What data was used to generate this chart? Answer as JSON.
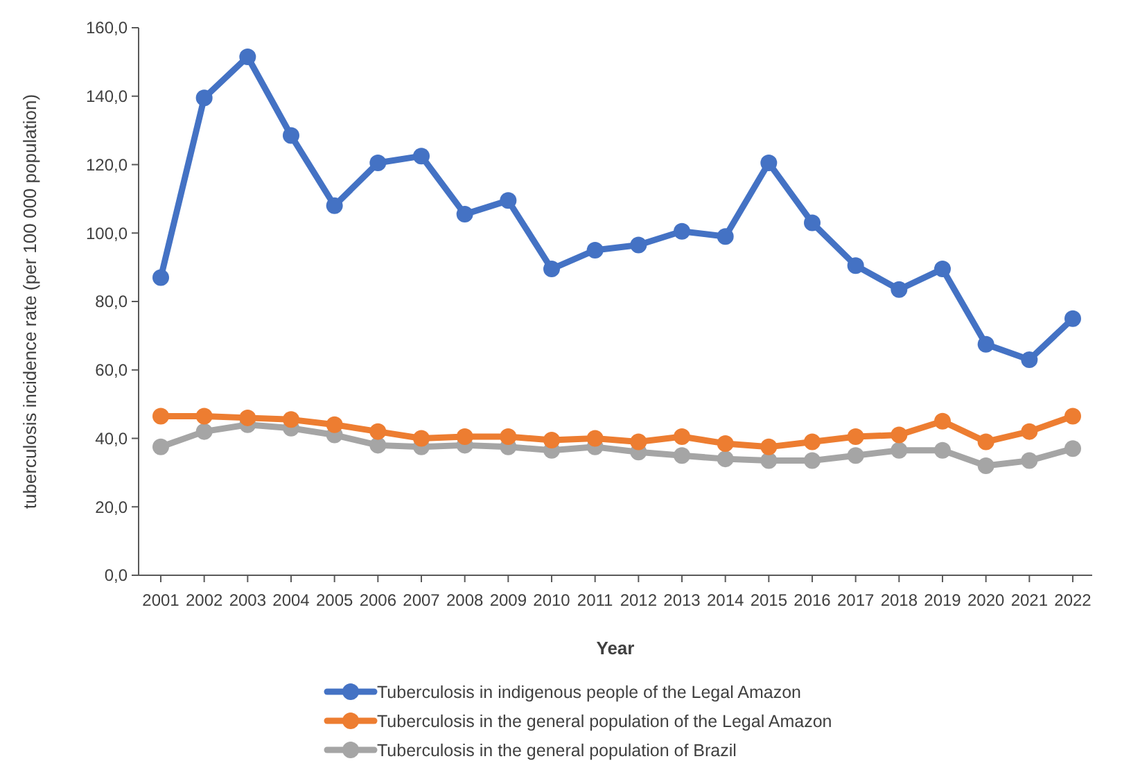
{
  "chart_data": {
    "type": "line",
    "xlabel": "Year",
    "ylabel": "tuberculosis incidence rate (per 100 000 population)",
    "categories": [
      "2001",
      "2002",
      "2003",
      "2004",
      "2005",
      "2006",
      "2007",
      "2008",
      "2009",
      "2010",
      "2011",
      "2012",
      "2013",
      "2014",
      "2015",
      "2016",
      "2017",
      "2018",
      "2019",
      "2020",
      "2021",
      "2022"
    ],
    "series": [
      {
        "name": "Tuberculosis in indigenous people of the Legal Amazon",
        "color": "#4472c4",
        "values": [
          87,
          139.5,
          151.5,
          128.5,
          108,
          120.5,
          122.5,
          105.5,
          109.5,
          89.5,
          95,
          96.5,
          100.5,
          99,
          120.5,
          103,
          90.5,
          83.5,
          89.5,
          67.5,
          63,
          75
        ]
      },
      {
        "name": "Tuberculosis in the general population of the Legal Amazon",
        "color": "#ed7d31",
        "values": [
          46.5,
          46.5,
          46,
          45.5,
          44,
          42,
          40,
          40.5,
          40.5,
          39.5,
          40,
          39,
          40.5,
          38.5,
          37.5,
          39,
          40.5,
          41,
          45,
          39,
          42,
          46.5
        ]
      },
      {
        "name": "Tuberculosis in the general population of Brazil",
        "color": "#a5a5a5",
        "values": [
          37.5,
          42,
          44,
          43,
          41,
          38,
          37.5,
          38,
          37.5,
          36.5,
          37.5,
          36,
          35,
          34,
          33.5,
          33.5,
          35,
          36.5,
          36.5,
          32,
          33.5,
          37
        ]
      }
    ],
    "ylim": [
      0,
      160
    ],
    "yticks": [
      {
        "value": 0,
        "label": "0,0"
      },
      {
        "value": 20,
        "label": "20,0"
      },
      {
        "value": 40,
        "label": "40,0"
      },
      {
        "value": 60,
        "label": "60,0"
      },
      {
        "value": 80,
        "label": "80,0"
      },
      {
        "value": 100,
        "label": "100,0"
      },
      {
        "value": 120,
        "label": "120,0"
      },
      {
        "value": 140,
        "label": "140,0"
      },
      {
        "value": 160,
        "label": "160,0"
      }
    ],
    "grid": false,
    "legend": "bottom",
    "marker": "circle",
    "line_style": "solid"
  }
}
